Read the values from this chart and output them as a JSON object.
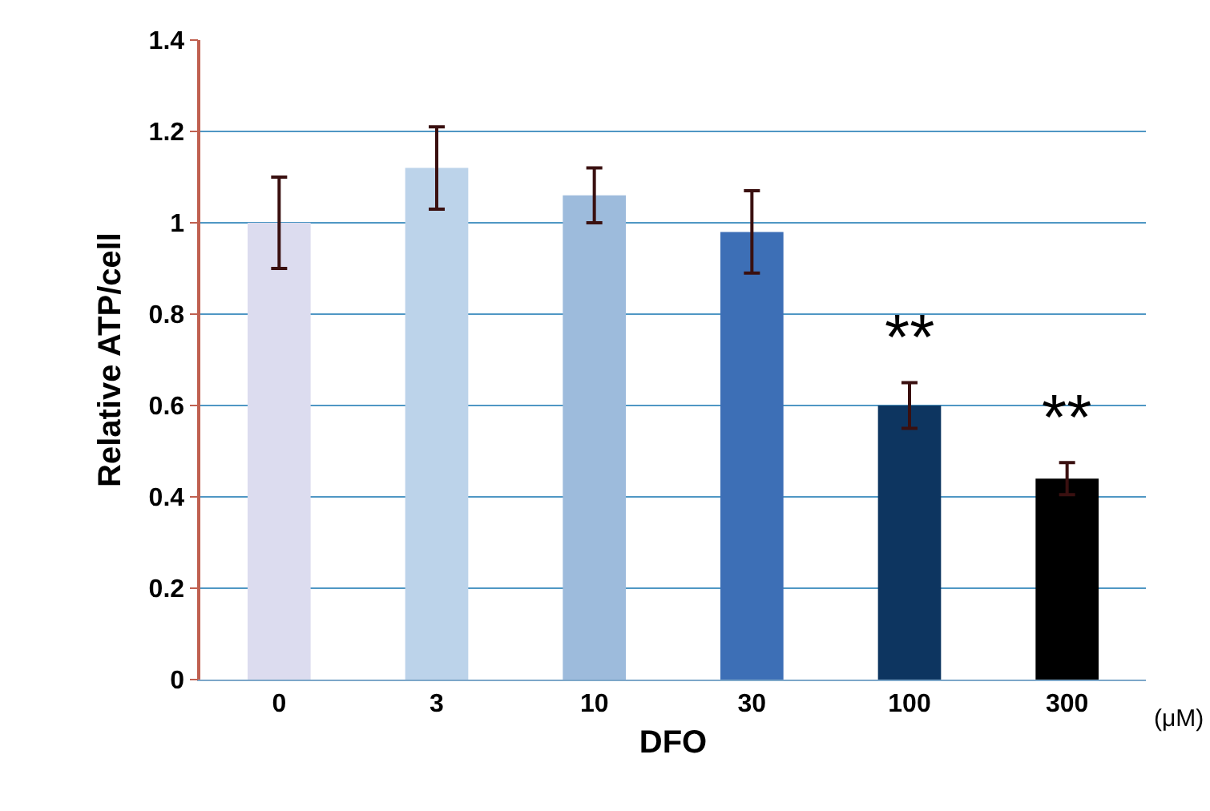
{
  "chart_data": {
    "type": "bar",
    "xlabel": "DFO",
    "ylabel": "Relative ATP/cell",
    "categories": [
      "0",
      "3",
      "10",
      "30",
      "100",
      "300"
    ],
    "values": [
      1.0,
      1.12,
      1.06,
      0.98,
      0.6,
      0.44
    ],
    "colors": [
      "#dcdcef",
      "#bcd3ea",
      "#9dbbdc",
      "#3d6fb6",
      "#0d3560",
      "#000000"
    ],
    "errors": [
      0.1,
      0.09,
      0.06,
      0.09,
      0.05,
      0.035
    ],
    "ylim": [
      0,
      1.4
    ],
    "yticks": [
      0,
      0.2,
      0.4,
      0.6,
      0.8,
      1,
      1.2,
      1.4
    ],
    "grid": "y",
    "annotations": [
      {
        "text": "**",
        "x": "100",
        "y": 0.65
      },
      {
        "text": "**",
        "x": "300",
        "y": 0.475
      },
      "(μM)"
    ]
  }
}
